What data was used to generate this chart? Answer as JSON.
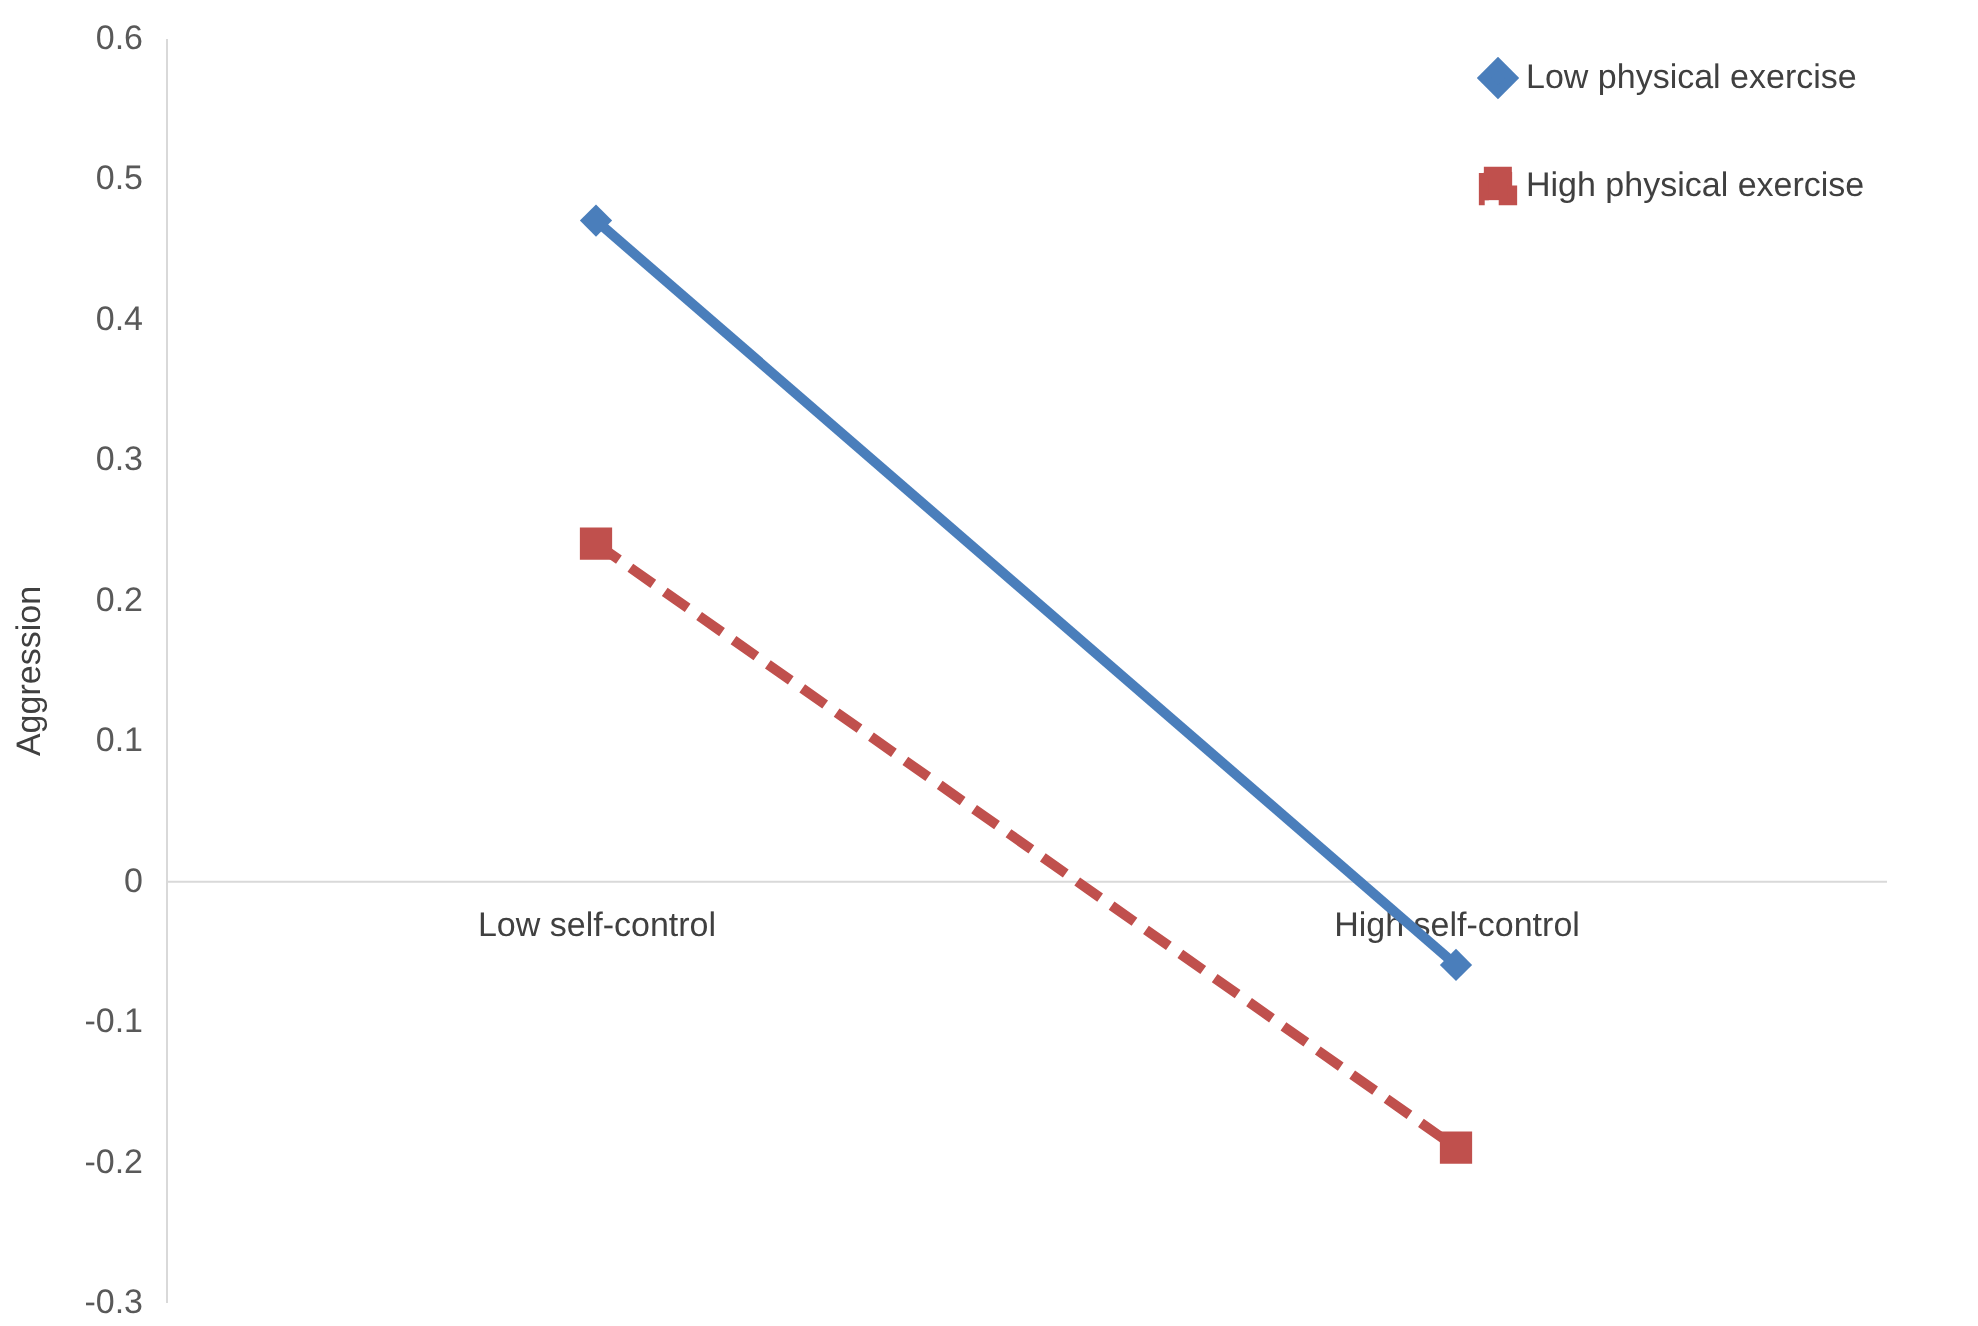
{
  "chart_data": {
    "type": "line",
    "ylabel": "Aggression",
    "categories": [
      "Low self-control",
      "High self-control"
    ],
    "series": [
      {
        "name": "Low physical exercise",
        "color": "#4a7ebb",
        "values": [
          0.47,
          -0.06
        ],
        "marker": "diamond",
        "line_style": "solid"
      },
      {
        "name": "High physical exercise",
        "color": "#c0504d",
        "values": [
          0.24,
          -0.19
        ],
        "marker": "square",
        "line_style": "dashed"
      }
    ],
    "ylim": [
      -0.3,
      0.6
    ],
    "yticks": [
      -0.3,
      -0.2,
      -0.1,
      0,
      0.1,
      0.2,
      0.3,
      0.4,
      0.5,
      0.6
    ],
    "grid": false,
    "legend": "top right"
  }
}
